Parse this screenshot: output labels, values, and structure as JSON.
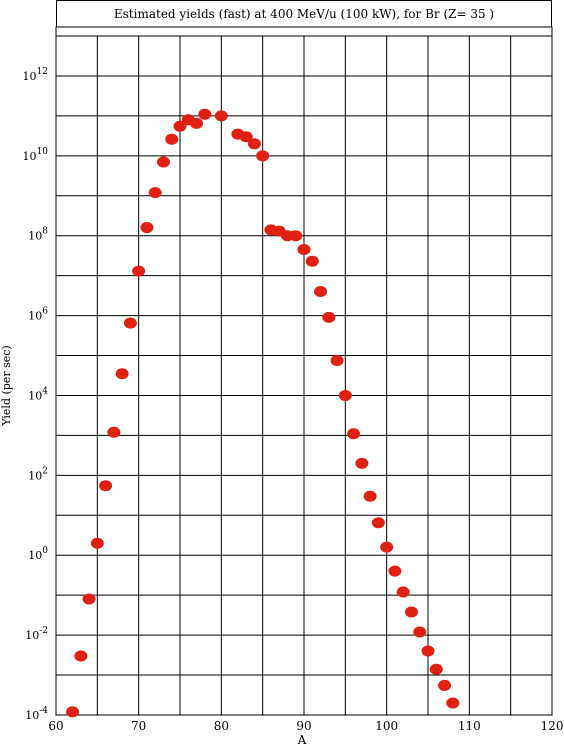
{
  "chart_data": {
    "type": "scatter",
    "title": "Estimated yields (fast) at 400 MeV/u (100 kW), for Br (Z= 35 )",
    "xlabel": "A",
    "ylabel": "Yield (per sec)",
    "xlim": [
      60,
      120
    ],
    "ylim_log10": [
      -4,
      13
    ],
    "y_scale": "log",
    "grid": true,
    "x_ticks": [
      "60",
      "70",
      "80",
      "90",
      "100",
      "110",
      "120"
    ],
    "y_ticks": [
      {
        "base": "10",
        "exp": "-4"
      },
      {
        "base": "10",
        "exp": "-2"
      },
      {
        "base": "10",
        "exp": "0"
      },
      {
        "base": "10",
        "exp": "2"
      },
      {
        "base": "10",
        "exp": "4"
      },
      {
        "base": "10",
        "exp": "6"
      },
      {
        "base": "10",
        "exp": "8"
      },
      {
        "base": "10",
        "exp": "10"
      },
      {
        "base": "10",
        "exp": "12"
      }
    ],
    "marker_color": "#e02010",
    "points": [
      {
        "x": 62,
        "y": 0.00012
      },
      {
        "x": 63,
        "y": 0.003
      },
      {
        "x": 64,
        "y": 0.08
      },
      {
        "x": 65,
        "y": 2.0
      },
      {
        "x": 66,
        "y": 55.0
      },
      {
        "x": 67,
        "y": 1200.0
      },
      {
        "x": 68,
        "y": 35000.0
      },
      {
        "x": 69,
        "y": 650000.0
      },
      {
        "x": 70,
        "y": 13000000.0
      },
      {
        "x": 71,
        "y": 160000000.0
      },
      {
        "x": 72,
        "y": 1200000000.0
      },
      {
        "x": 73,
        "y": 7000000000.0
      },
      {
        "x": 74,
        "y": 26000000000.0
      },
      {
        "x": 75,
        "y": 55000000000.0
      },
      {
        "x": 76,
        "y": 80000000000.0
      },
      {
        "x": 77,
        "y": 65000000000.0
      },
      {
        "x": 78,
        "y": 110000000000.0
      },
      {
        "x": 80,
        "y": 100000000000.0
      },
      {
        "x": 82,
        "y": 35000000000.0
      },
      {
        "x": 83,
        "y": 30000000000.0
      },
      {
        "x": 84,
        "y": 20000000000.0
      },
      {
        "x": 85,
        "y": 10000000000.0
      },
      {
        "x": 86,
        "y": 140000000.0
      },
      {
        "x": 87,
        "y": 130000000.0
      },
      {
        "x": 88,
        "y": 100000000.0
      },
      {
        "x": 89,
        "y": 100000000.0
      },
      {
        "x": 90,
        "y": 45000000.0
      },
      {
        "x": 91,
        "y": 23000000.0
      },
      {
        "x": 92,
        "y": 4000000.0
      },
      {
        "x": 93,
        "y": 900000.0
      },
      {
        "x": 94,
        "y": 75000.0
      },
      {
        "x": 95,
        "y": 10000.0
      },
      {
        "x": 96,
        "y": 1100.0
      },
      {
        "x": 97,
        "y": 200.0
      },
      {
        "x": 98,
        "y": 30.0
      },
      {
        "x": 99,
        "y": 6.5
      },
      {
        "x": 100,
        "y": 1.6
      },
      {
        "x": 101,
        "y": 0.4
      },
      {
        "x": 102,
        "y": 0.12
      },
      {
        "x": 103,
        "y": 0.038
      },
      {
        "x": 104,
        "y": 0.012
      },
      {
        "x": 105,
        "y": 0.004
      },
      {
        "x": 106,
        "y": 0.0014
      },
      {
        "x": 107,
        "y": 0.00055
      },
      {
        "x": 108,
        "y": 0.0002
      }
    ]
  }
}
